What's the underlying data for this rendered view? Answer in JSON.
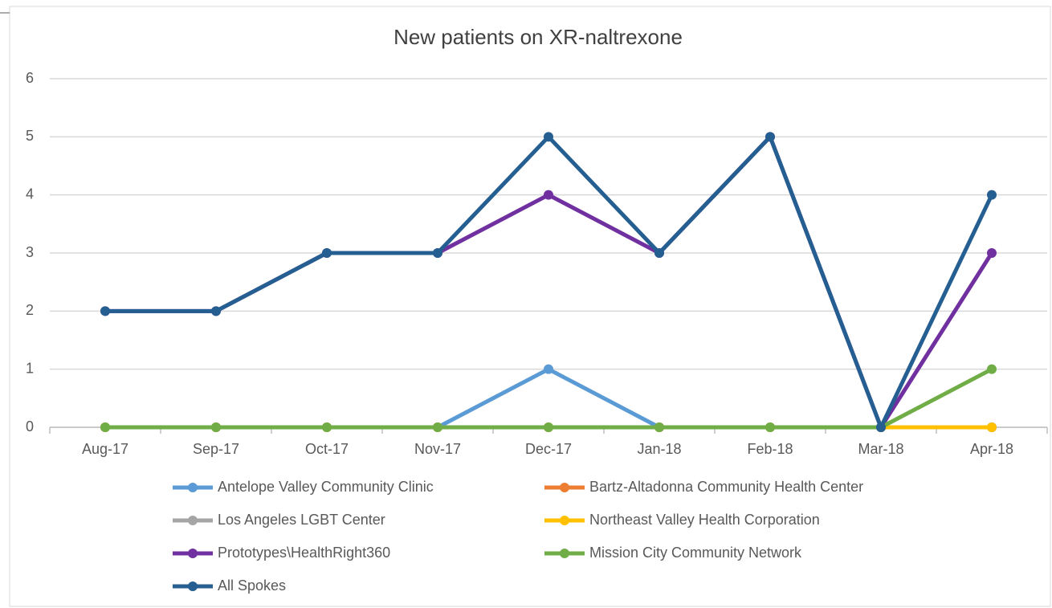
{
  "chart_data": {
    "type": "line",
    "title": "New patients on XR-naltrexone",
    "categories": [
      "Aug-17",
      "Sep-17",
      "Oct-17",
      "Nov-17",
      "Dec-17",
      "Jan-18",
      "Feb-18",
      "Mar-18",
      "Apr-18"
    ],
    "series": [
      {
        "name": "Antelope Valley Community Clinic",
        "color": "#5b9bd5",
        "values": [
          0,
          0,
          0,
          0,
          1,
          0,
          0,
          0,
          0
        ]
      },
      {
        "name": "Bartz-Altadonna Community Health Center",
        "color": "#ed7d31",
        "values": [
          0,
          0,
          0,
          0,
          0,
          0,
          0,
          0,
          0
        ]
      },
      {
        "name": "Los Angeles LGBT Center",
        "color": "#a5a5a5",
        "values": [
          0,
          0,
          0,
          0,
          0,
          0,
          0,
          0,
          0
        ]
      },
      {
        "name": "Northeast Valley Health Corporation",
        "color": "#ffc000",
        "values": [
          0,
          0,
          0,
          0,
          0,
          0,
          0,
          0,
          0
        ]
      },
      {
        "name": "Prototypes\\HealthRight360",
        "color": "#7030a0",
        "values": [
          2,
          2,
          3,
          3,
          4,
          3,
          5,
          0,
          3
        ]
      },
      {
        "name": "Mission City Community Network",
        "color": "#70ad47",
        "values": [
          0,
          0,
          0,
          0,
          0,
          0,
          0,
          0,
          1
        ]
      },
      {
        "name": "All Spokes",
        "color": "#255e91",
        "values": [
          2,
          2,
          3,
          3,
          5,
          3,
          5,
          0,
          4
        ]
      }
    ],
    "ylim": [
      0,
      6
    ],
    "yticks": [
      0,
      1,
      2,
      3,
      4,
      5,
      6
    ],
    "grid": true,
    "legend": "bottom"
  }
}
